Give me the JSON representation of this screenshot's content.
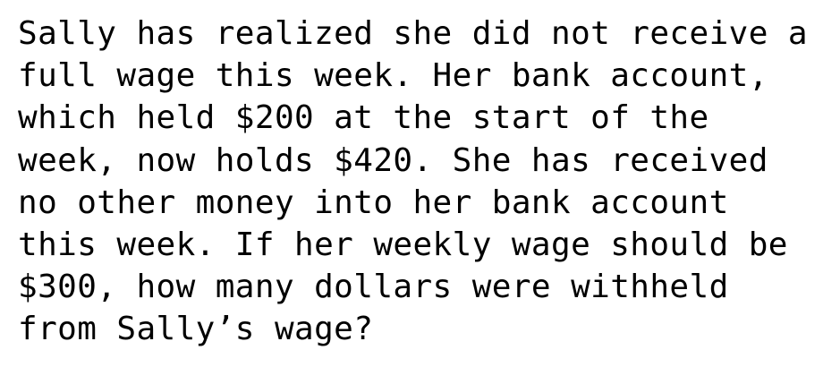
{
  "problem": {
    "lines": [
      "Sally has realized she did not receive a",
      "full wage this week. Her bank account,",
      "which held $200 at the start of the",
      "week, now holds $420. She has received",
      "no other money into her bank account",
      "this week. If her weekly wage should be",
      "$300, how many dollars were withheld",
      "from Sally’s wage?"
    ]
  }
}
